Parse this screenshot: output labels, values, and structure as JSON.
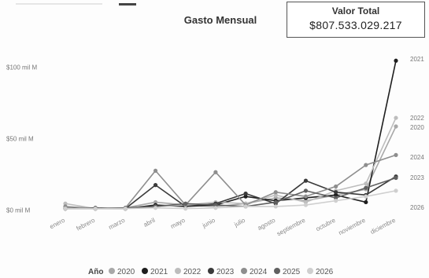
{
  "kpi": {
    "label": "Valor Total",
    "value": "$807.533.029.217"
  },
  "chart_data": {
    "type": "line",
    "title": "Gasto Mensual",
    "xlabel": "",
    "ylabel": "",
    "categories": [
      "enero",
      "febrero",
      "marzo",
      "abril",
      "mayo",
      "junio",
      "julio",
      "agosto",
      "septiembre",
      "octubre",
      "noviembre",
      "diciembre"
    ],
    "ylim": [
      -3,
      108
    ],
    "yticks": [
      {
        "value": 0,
        "label": "$0 mil M"
      },
      {
        "value": 50,
        "label": "$50 mil M"
      },
      {
        "value": 100,
        "label": "$100 mil M"
      }
    ],
    "grid": false,
    "legend": {
      "title": "Año",
      "position": "bottom"
    },
    "end_labels": [
      "2021",
      "2022",
      "2020",
      "2024",
      "2023",
      "2026"
    ],
    "series": [
      {
        "name": "2020",
        "color": "#a8a8a8",
        "values": [
          1,
          0.5,
          1,
          5,
          3,
          2,
          4,
          8,
          6,
          10,
          14,
          58
        ]
      },
      {
        "name": "2021",
        "color": "#1e1e1e",
        "values": [
          0.5,
          0.5,
          0.5,
          3,
          2,
          3,
          9,
          6,
          8,
          10,
          5,
          104
        ]
      },
      {
        "name": "2022",
        "color": "#bdbdbd",
        "values": [
          4,
          0.5,
          1,
          2,
          3,
          5,
          4,
          10,
          5,
          13,
          18,
          64
        ]
      },
      {
        "name": "2023",
        "color": "#3a3a3a",
        "values": [
          0.5,
          1,
          0.5,
          17,
          2,
          4,
          11,
          4,
          20,
          12,
          10,
          23
        ]
      },
      {
        "name": "2024",
        "color": "#8e8e8e",
        "values": [
          2,
          0.5,
          1,
          27,
          3,
          26,
          3,
          12,
          9,
          16,
          31,
          38
        ]
      },
      {
        "name": "2025",
        "color": "#606060",
        "values": [
          0.5,
          0.5,
          1,
          2,
          4,
          3,
          2,
          5,
          13,
          8,
          15,
          22
        ]
      },
      {
        "name": "2026",
        "color": "#cfcfcf",
        "values": [
          0.5,
          0.5,
          0.5,
          1,
          0.5,
          1,
          2,
          2,
          3,
          6,
          9,
          13
        ]
      }
    ]
  }
}
